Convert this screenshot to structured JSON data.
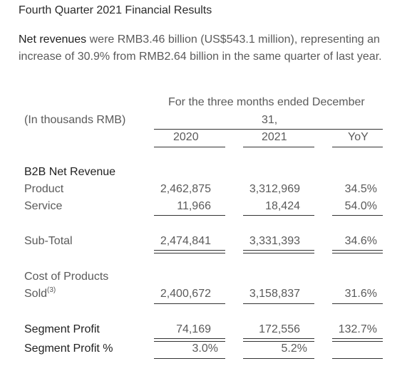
{
  "title": "Fourth Quarter 2021 Financial Results",
  "intro": {
    "label": "Net revenues",
    "text": " were RMB3.46 billion (US$543.1 million), representing an increase of 30.9% from RMB2.64 billion in the same quarter of last year."
  },
  "table": {
    "unit_label": "(In thousands RMB)",
    "period_header_line1": "For the three months ended December",
    "period_header_line2": "31,",
    "col_2020": "2020",
    "col_2021": "2021",
    "col_yoy": "YoY",
    "section_label": "B2B Net Revenue",
    "rows": {
      "product": {
        "label": "Product",
        "v2020": "2,462,875",
        "v2021": "3,312,969",
        "yoy": "34.5%"
      },
      "service": {
        "label": "Service",
        "v2020": "11,966",
        "v2021": "18,424",
        "yoy": "54.0%"
      },
      "subtotal": {
        "label": "Sub-Total",
        "v2020": "2,474,841",
        "v2021": "3,331,393",
        "yoy": "34.6%"
      },
      "cost": {
        "label_line1": "Cost of Products",
        "label_line2": "Sold",
        "footnote": "(3)",
        "v2020": "2,400,672",
        "v2021": "3,158,837",
        "yoy": "31.6%"
      },
      "segment_profit": {
        "label": "Segment Profit",
        "v2020": "74,169",
        "v2021": "172,556",
        "yoy": "132.7%"
      },
      "segment_profit_pct": {
        "label": "Segment Profit %",
        "v2020": "3.0%",
        "v2021": "5.2%",
        "yoy": ""
      }
    }
  }
}
